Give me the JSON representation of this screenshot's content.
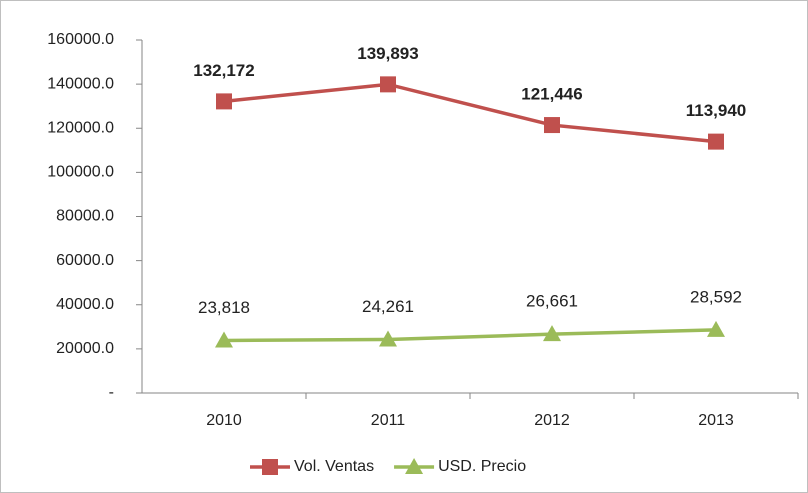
{
  "chart_data": {
    "type": "line",
    "categories": [
      "2010",
      "2011",
      "2012",
      "2013"
    ],
    "series": [
      {
        "name": "Vol. Ventas",
        "color": "#c0504d",
        "marker": "square",
        "bold_labels": true,
        "values": [
          132172,
          139893,
          121446,
          113940
        ],
        "value_labels": [
          "132,172",
          "139,893",
          "121,446",
          "113,940"
        ]
      },
      {
        "name": "USD. Precio",
        "color": "#9bbb59",
        "marker": "triangle",
        "bold_labels": false,
        "values": [
          23818,
          24261,
          26661,
          28592
        ],
        "value_labels": [
          "23,818",
          "24,261",
          "26,661",
          "28,592"
        ]
      }
    ],
    "ylim": [
      0,
      160000
    ],
    "yticks": [
      {
        "value": 0,
        "label": "-"
      },
      {
        "value": 20000,
        "label": "20000.0"
      },
      {
        "value": 40000,
        "label": "40000.0"
      },
      {
        "value": 60000,
        "label": "60000.0"
      },
      {
        "value": 80000,
        "label": "80000.0"
      },
      {
        "value": 100000,
        "label": "100000.0"
      },
      {
        "value": 120000,
        "label": "120000.0"
      },
      {
        "value": 140000,
        "label": "140000.0"
      },
      {
        "value": 160000,
        "label": "160000.0"
      }
    ],
    "grid": false,
    "legend": "bottom"
  }
}
